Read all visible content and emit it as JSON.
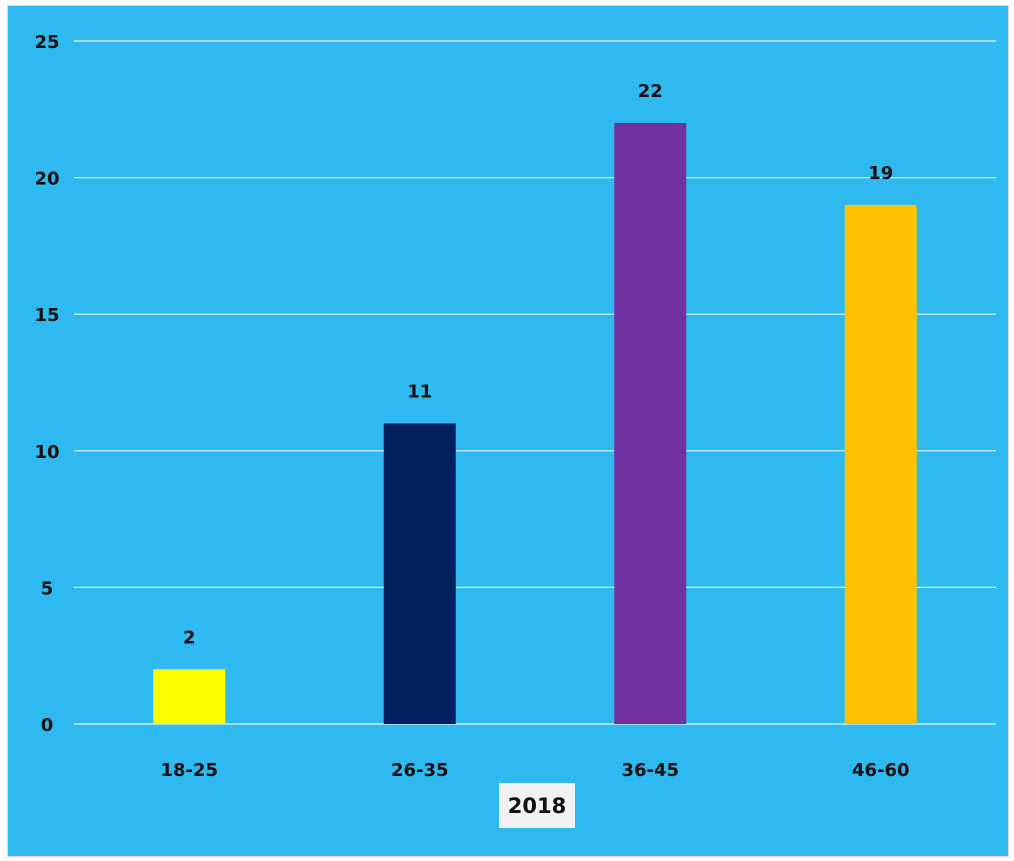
{
  "chart_data": {
    "type": "bar",
    "title": "",
    "xlabel": "2018",
    "ylabel": "",
    "categories": [
      "18-25",
      "26-35",
      "36-45",
      "46-60"
    ],
    "values": [
      2,
      11,
      22,
      19
    ],
    "bar_colors": [
      "#ffff00",
      "#002060",
      "#7030a0",
      "#ffc000"
    ],
    "background_color": "#2eb9f0",
    "ylim": [
      0,
      25
    ],
    "yticks": [
      0,
      5,
      10,
      15,
      20,
      25
    ],
    "grid": true,
    "legend": "none",
    "data_labels": [
      "2",
      "11",
      "22",
      "19"
    ]
  }
}
